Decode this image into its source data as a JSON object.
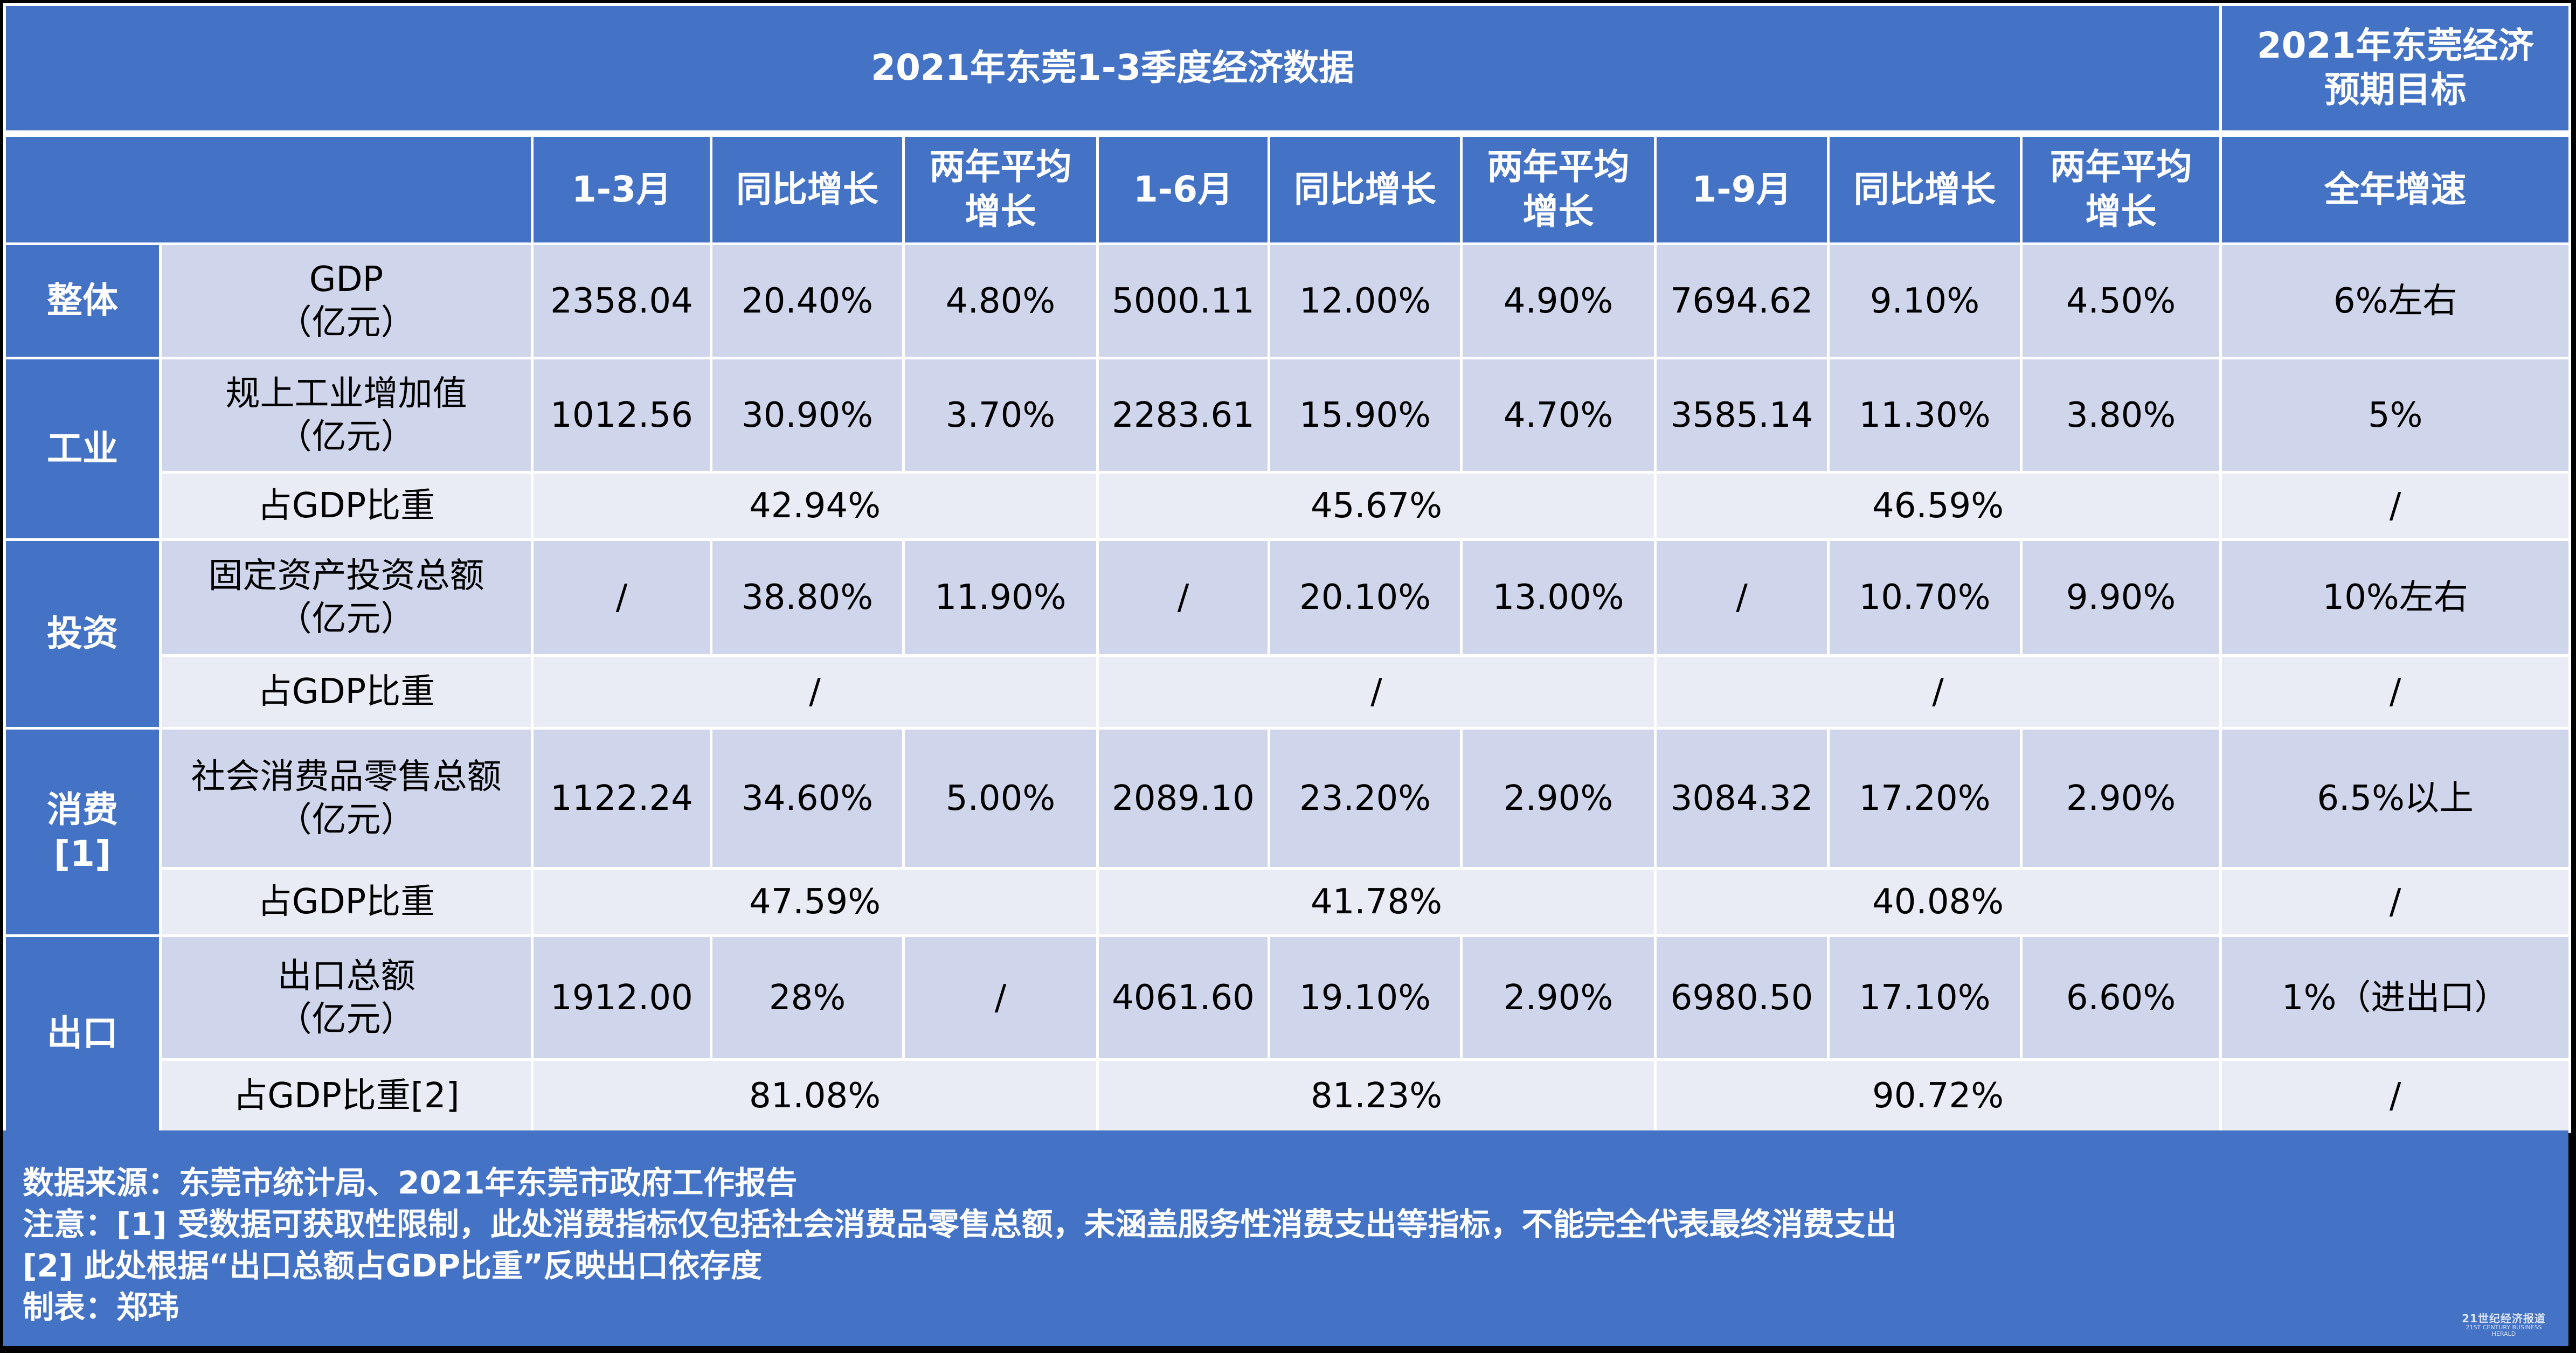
{
  "table": {
    "title_main": "2021年东莞1-3季度经济数据",
    "title_target": "2021年东莞经济\n预期目标",
    "columns": [
      "1-3月",
      "同比增长",
      "两年平均\n增长",
      "1-6月",
      "同比增长",
      "两年平均\n增长",
      "1-9月",
      "同比增长",
      "两年平均\n增长",
      "全年增速"
    ],
    "categories": {
      "overall": "整体",
      "industry": "工业",
      "investment": "投资",
      "consumption": "消费\n[1]",
      "export": "出口"
    },
    "rows": {
      "gdp": {
        "label": "GDP\n（亿元）",
        "values": [
          "2358.04",
          "20.40%",
          "4.80%",
          "5000.11",
          "12.00%",
          "4.90%",
          "7694.62",
          "9.10%",
          "4.50%",
          "6%左右"
        ]
      },
      "industry_value": {
        "label": "规上工业增加值\n（亿元）",
        "values": [
          "1012.56",
          "30.90%",
          "3.70%",
          "2283.61",
          "15.90%",
          "4.70%",
          "3585.14",
          "11.30%",
          "3.80%",
          "5%"
        ]
      },
      "industry_share": {
        "label": "占GDP比重",
        "values": [
          "42.94%",
          "45.67%",
          "46.59%",
          "/"
        ]
      },
      "investment_value": {
        "label": "固定资产投资总额\n（亿元）",
        "values": [
          "/",
          "38.80%",
          "11.90%",
          "/",
          "20.10%",
          "13.00%",
          "/",
          "10.70%",
          "9.90%",
          "10%左右"
        ]
      },
      "investment_share": {
        "label": "占GDP比重",
        "values": [
          "/",
          "/",
          "/",
          "/"
        ]
      },
      "consumption_value": {
        "label": "社会消费品零售总额\n（亿元）",
        "values": [
          "1122.24",
          "34.60%",
          "5.00%",
          "2089.10",
          "23.20%",
          "2.90%",
          "3084.32",
          "17.20%",
          "2.90%",
          "6.5%以上"
        ]
      },
      "consumption_share": {
        "label": "占GDP比重",
        "values": [
          "47.59%",
          "41.78%",
          "40.08%",
          "/"
        ]
      },
      "export_value": {
        "label": "出口总额\n（亿元）",
        "values": [
          "1912.00",
          "28%",
          "/",
          "4061.60",
          "19.10%",
          "2.90%",
          "6980.50",
          "17.10%",
          "6.60%",
          "1%（进出口）"
        ]
      },
      "export_share": {
        "label": "占GDP比重[2]",
        "values": [
          "81.08%",
          "81.23%",
          "90.72%",
          "/"
        ]
      }
    }
  },
  "footer": {
    "lines": [
      "数据来源：东莞市统计局、2021年东莞市政府工作报告",
      "注意：[1] 受数据可获取性限制，此处消费指标仅包括社会消费品零售总额，未涵盖服务性消费支出等指标，不能完全代表最终消费支出",
      "[2] 此处根据“出口总额占GDP比重”反映出口依存度",
      "制表：郑玮"
    ],
    "watermark_cn": "21世纪经济报道",
    "watermark_en": "21ST CENTURY BUSINESS HERALD"
  },
  "colors": {
    "header_blue": "#4472c4",
    "row_band_dark": "#cfd5ea",
    "row_band_light": "#e9ebf5",
    "text": "#000000",
    "header_text": "#ffffff"
  }
}
